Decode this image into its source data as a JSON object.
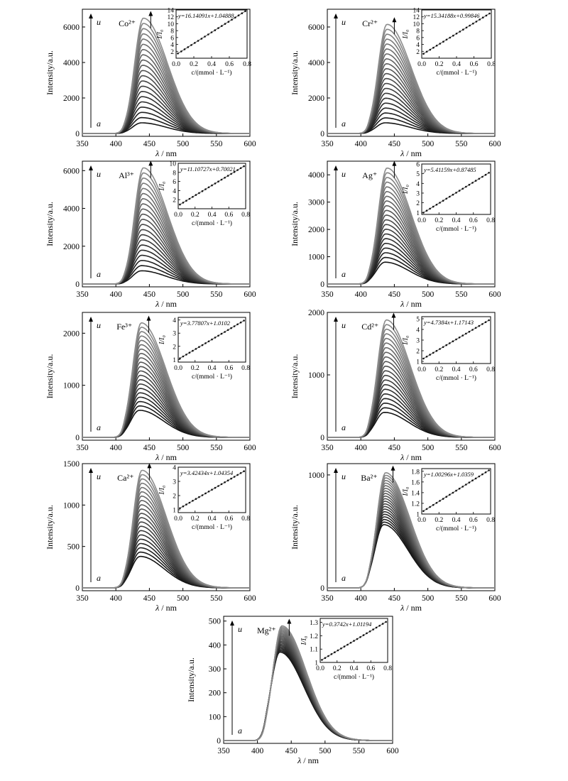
{
  "figure": {
    "xlabel_symbol": "λ",
    "xlabel_unit": " / nm",
    "ylabel": "Intensity/a.u.",
    "curve_start_label": "a",
    "curve_end_label": "u",
    "inset_xlabel": "c/(mmol · L⁻¹)",
    "inset_ylabel": "I/I₀"
  },
  "chart_data": [
    {
      "type": "line",
      "ion": "Co²⁺",
      "xlim": [
        350,
        600
      ],
      "xticks": [
        350,
        400,
        450,
        500,
        550,
        600
      ],
      "ylim": [
        0,
        7000
      ],
      "yticks": [
        0,
        2000,
        4000,
        6000
      ],
      "peak_x": 438,
      "peak_min": 600,
      "peak_max": 6500,
      "n_curves": 21,
      "inset": {
        "equation": "y=16.14091x+1.04888",
        "slope": 16.14091,
        "intercept": 1.04888,
        "xlim": [
          0,
          0.8
        ],
        "xticks": [
          0.0,
          0.2,
          0.4,
          0.6,
          0.8
        ],
        "ylim": [
          0,
          14
        ],
        "yticks": [
          2,
          4,
          6,
          8,
          10,
          12,
          14
        ]
      }
    },
    {
      "type": "line",
      "ion": "Cr²⁺",
      "xlim": [
        350,
        600
      ],
      "xticks": [
        350,
        400,
        450,
        500,
        550,
        600
      ],
      "ylim": [
        0,
        7000
      ],
      "yticks": [
        0,
        2000,
        4000,
        6000
      ],
      "peak_x": 436,
      "peak_min": 600,
      "peak_max": 6150,
      "n_curves": 21,
      "inset": {
        "equation": "y=15.34188x+0.99846",
        "slope": 15.34188,
        "intercept": 0.99846,
        "xlim": [
          0,
          0.8
        ],
        "xticks": [
          0.0,
          0.2,
          0.4,
          0.6,
          0.8
        ],
        "ylim": [
          0,
          14
        ],
        "yticks": [
          2,
          4,
          6,
          8,
          10,
          12,
          14
        ]
      }
    },
    {
      "type": "line",
      "ion": "Al³⁺",
      "xlim": [
        350,
        600
      ],
      "xticks": [
        350,
        400,
        450,
        500,
        550,
        600
      ],
      "ylim": [
        0,
        6500
      ],
      "yticks": [
        0,
        2000,
        4000,
        6000
      ],
      "peak_x": 438,
      "peak_min": 700,
      "peak_max": 6150,
      "n_curves": 21,
      "inset": {
        "equation": "y=11.10727x+0.70021",
        "slope": 11.10727,
        "intercept": 0.70021,
        "xlim": [
          0,
          0.8
        ],
        "xticks": [
          0.0,
          0.2,
          0.4,
          0.6,
          0.8
        ],
        "ylim": [
          0,
          10
        ],
        "yticks": [
          2,
          4,
          6,
          8,
          10
        ]
      }
    },
    {
      "type": "line",
      "ion": "Ag⁺",
      "xlim": [
        350,
        600
      ],
      "xticks": [
        350,
        400,
        450,
        500,
        550,
        600
      ],
      "ylim": [
        0,
        4500
      ],
      "yticks": [
        0,
        1000,
        2000,
        3000,
        4000
      ],
      "peak_x": 436,
      "peak_min": 800,
      "peak_max": 4250,
      "n_curves": 21,
      "inset": {
        "equation": "y=5.41159x+0.87485",
        "slope": 5.41159,
        "intercept": 0.87485,
        "xlim": [
          0,
          0.8
        ],
        "xticks": [
          0.0,
          0.2,
          0.4,
          0.6,
          0.8
        ],
        "ylim": [
          0.8,
          6
        ],
        "yticks": [
          1,
          2,
          3,
          4,
          5,
          6
        ]
      }
    },
    {
      "type": "line",
      "ion": "Fe³⁺",
      "xlim": [
        350,
        600
      ],
      "xticks": [
        350,
        400,
        450,
        500,
        550,
        600
      ],
      "ylim": [
        0,
        2400
      ],
      "yticks": [
        0,
        1000,
        2000
      ],
      "peak_x": 435,
      "peak_min": 520,
      "peak_max": 2200,
      "n_curves": 21,
      "inset": {
        "equation": "y=3.77807x+1.0102",
        "slope": 3.77807,
        "intercept": 1.0102,
        "xlim": [
          0,
          0.8
        ],
        "xticks": [
          0.0,
          0.2,
          0.4,
          0.6,
          0.8
        ],
        "ylim": [
          0.8,
          4.2
        ],
        "yticks": [
          1,
          2,
          3,
          4
        ]
      }
    },
    {
      "type": "line",
      "ion": "Cd²⁺",
      "xlim": [
        350,
        600
      ],
      "xticks": [
        350,
        400,
        450,
        500,
        550,
        600
      ],
      "ylim": [
        0,
        2000
      ],
      "yticks": [
        0,
        1000,
        2000
      ],
      "peak_x": 435,
      "peak_min": 400,
      "peak_max": 1880,
      "n_curves": 21,
      "inset": {
        "equation": "y=4.7384x+1.17143",
        "slope": 4.7384,
        "intercept": 1.17143,
        "xlim": [
          0,
          0.8
        ],
        "xticks": [
          0.0,
          0.2,
          0.4,
          0.6,
          0.8
        ],
        "ylim": [
          0.8,
          5.2
        ],
        "yticks": [
          1,
          2,
          3,
          4,
          5
        ]
      }
    },
    {
      "type": "line",
      "ion": "Ca²⁺",
      "xlim": [
        350,
        600
      ],
      "xticks": [
        350,
        400,
        450,
        500,
        550,
        600
      ],
      "ylim": [
        0,
        1500
      ],
      "yticks": [
        0,
        500,
        1000,
        1500
      ],
      "peak_x": 436,
      "peak_min": 380,
      "peak_max": 1420,
      "n_curves": 21,
      "inset": {
        "equation": "y=3.42434x+1.04354",
        "slope": 3.42434,
        "intercept": 1.04354,
        "xlim": [
          0,
          0.8
        ],
        "xticks": [
          0.0,
          0.2,
          0.4,
          0.6,
          0.8
        ],
        "ylim": [
          0.8,
          4
        ],
        "yticks": [
          1,
          2,
          3,
          4
        ]
      }
    },
    {
      "type": "line",
      "ion": "Ba²⁺",
      "xlim": [
        350,
        600
      ],
      "xticks": [
        350,
        400,
        450,
        500,
        550,
        600
      ],
      "ylim": [
        0,
        1100
      ],
      "yticks": [
        0,
        1000
      ],
      "peak_x": 434,
      "peak_min": 560,
      "peak_max": 1020,
      "n_curves": 21,
      "inset": {
        "equation": "y=1.00296x+1.0359",
        "slope": 1.00296,
        "intercept": 1.0359,
        "xlim": [
          0,
          0.8
        ],
        "xticks": [
          0.0,
          0.2,
          0.4,
          0.6,
          0.8
        ],
        "ylim": [
          1.0,
          1.85
        ],
        "yticks": [
          1.0,
          1.2,
          1.4,
          1.6,
          1.8
        ]
      }
    },
    {
      "type": "line",
      "ion": "Mg²⁺",
      "xlim": [
        350,
        600
      ],
      "xticks": [
        350,
        400,
        450,
        500,
        550,
        600
      ],
      "ylim": [
        0,
        520
      ],
      "yticks": [
        0,
        100,
        200,
        300,
        400,
        500
      ],
      "peak_x": 433,
      "peak_min": 370,
      "peak_max": 480,
      "n_curves": 21,
      "inset": {
        "equation": "y=0.3742x+1.01194",
        "slope": 0.3742,
        "intercept": 1.01194,
        "xlim": [
          0,
          0.8
        ],
        "xticks": [
          0.0,
          0.2,
          0.4,
          0.6,
          0.8
        ],
        "ylim": [
          1.0,
          1.33
        ],
        "yticks": [
          1.0,
          1.1,
          1.2,
          1.3
        ]
      }
    }
  ]
}
